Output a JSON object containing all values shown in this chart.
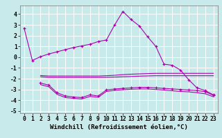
{
  "bg_color": "#c8eaea",
  "line_color": "#aa00aa",
  "grid_color": "#ffffff",
  "xlabel": "Windchill (Refroidissement éolien,°C)",
  "xlabel_fontsize": 6.5,
  "tick_fontsize": 5.8,
  "ylim": [
    -5.2,
    4.8
  ],
  "xlim": [
    -0.5,
    23.5
  ],
  "yticks": [
    -5,
    -4,
    -3,
    -2,
    -1,
    0,
    1,
    2,
    3,
    4
  ],
  "xticks": [
    0,
    1,
    2,
    3,
    4,
    5,
    6,
    7,
    8,
    9,
    10,
    11,
    12,
    13,
    14,
    15,
    16,
    17,
    18,
    19,
    20,
    21,
    22,
    23
  ],
  "line1_x": [
    0,
    1,
    2,
    3,
    4,
    5,
    6,
    7,
    8,
    9,
    10,
    11,
    12,
    13,
    14,
    15,
    16,
    17,
    18,
    19,
    20,
    21,
    22,
    23
  ],
  "line1_y": [
    2.7,
    -0.3,
    0.05,
    0.3,
    0.5,
    0.7,
    0.9,
    1.05,
    1.2,
    1.45,
    1.6,
    3.0,
    4.25,
    3.5,
    2.9,
    1.9,
    1.0,
    -0.65,
    -0.75,
    -1.2,
    -2.1,
    -2.85,
    -3.1,
    -3.5
  ],
  "line2_x": [
    2,
    3,
    4,
    5,
    6,
    7,
    8,
    9,
    10,
    11,
    12,
    13,
    14,
    15,
    16,
    17,
    18,
    19,
    20,
    21,
    22,
    23
  ],
  "line2_y": [
    -1.7,
    -1.75,
    -1.75,
    -1.75,
    -1.75,
    -1.75,
    -1.75,
    -1.75,
    -1.72,
    -1.68,
    -1.62,
    -1.58,
    -1.55,
    -1.52,
    -1.5,
    -1.5,
    -1.5,
    -1.5,
    -1.5,
    -1.5,
    -1.5,
    -1.5
  ],
  "line3_x": [
    2,
    3,
    4,
    5,
    6,
    7,
    8,
    9,
    10,
    11,
    12,
    13,
    14,
    15,
    16,
    17,
    18,
    19,
    20,
    21,
    22,
    23
  ],
  "line3_y": [
    -1.82,
    -1.88,
    -1.88,
    -1.88,
    -1.88,
    -1.88,
    -1.88,
    -1.88,
    -1.87,
    -1.85,
    -1.82,
    -1.79,
    -1.76,
    -1.74,
    -1.72,
    -1.72,
    -1.72,
    -1.72,
    -1.72,
    -1.72,
    -1.72,
    -1.72
  ],
  "line4_x": [
    2,
    3,
    4,
    5,
    6,
    7,
    8,
    9,
    10,
    11,
    12,
    13,
    14,
    15,
    16,
    17,
    18,
    19,
    20,
    21,
    22,
    23
  ],
  "line4_y": [
    -2.4,
    -2.6,
    -3.3,
    -3.6,
    -3.7,
    -3.75,
    -3.5,
    -3.6,
    -3.05,
    -2.95,
    -2.9,
    -2.85,
    -2.8,
    -2.8,
    -2.85,
    -2.9,
    -2.95,
    -3.0,
    -3.05,
    -3.1,
    -3.2,
    -3.55
  ],
  "line5_x": [
    2,
    3,
    4,
    5,
    6,
    7,
    8,
    9,
    10,
    11,
    12,
    13,
    14,
    15,
    16,
    17,
    18,
    19,
    20,
    21,
    22,
    23
  ],
  "line5_y": [
    -2.55,
    -2.75,
    -3.45,
    -3.75,
    -3.82,
    -3.88,
    -3.65,
    -3.72,
    -3.18,
    -3.08,
    -3.02,
    -2.98,
    -2.95,
    -2.95,
    -3.0,
    -3.05,
    -3.12,
    -3.18,
    -3.22,
    -3.3,
    -3.4,
    -3.68
  ]
}
